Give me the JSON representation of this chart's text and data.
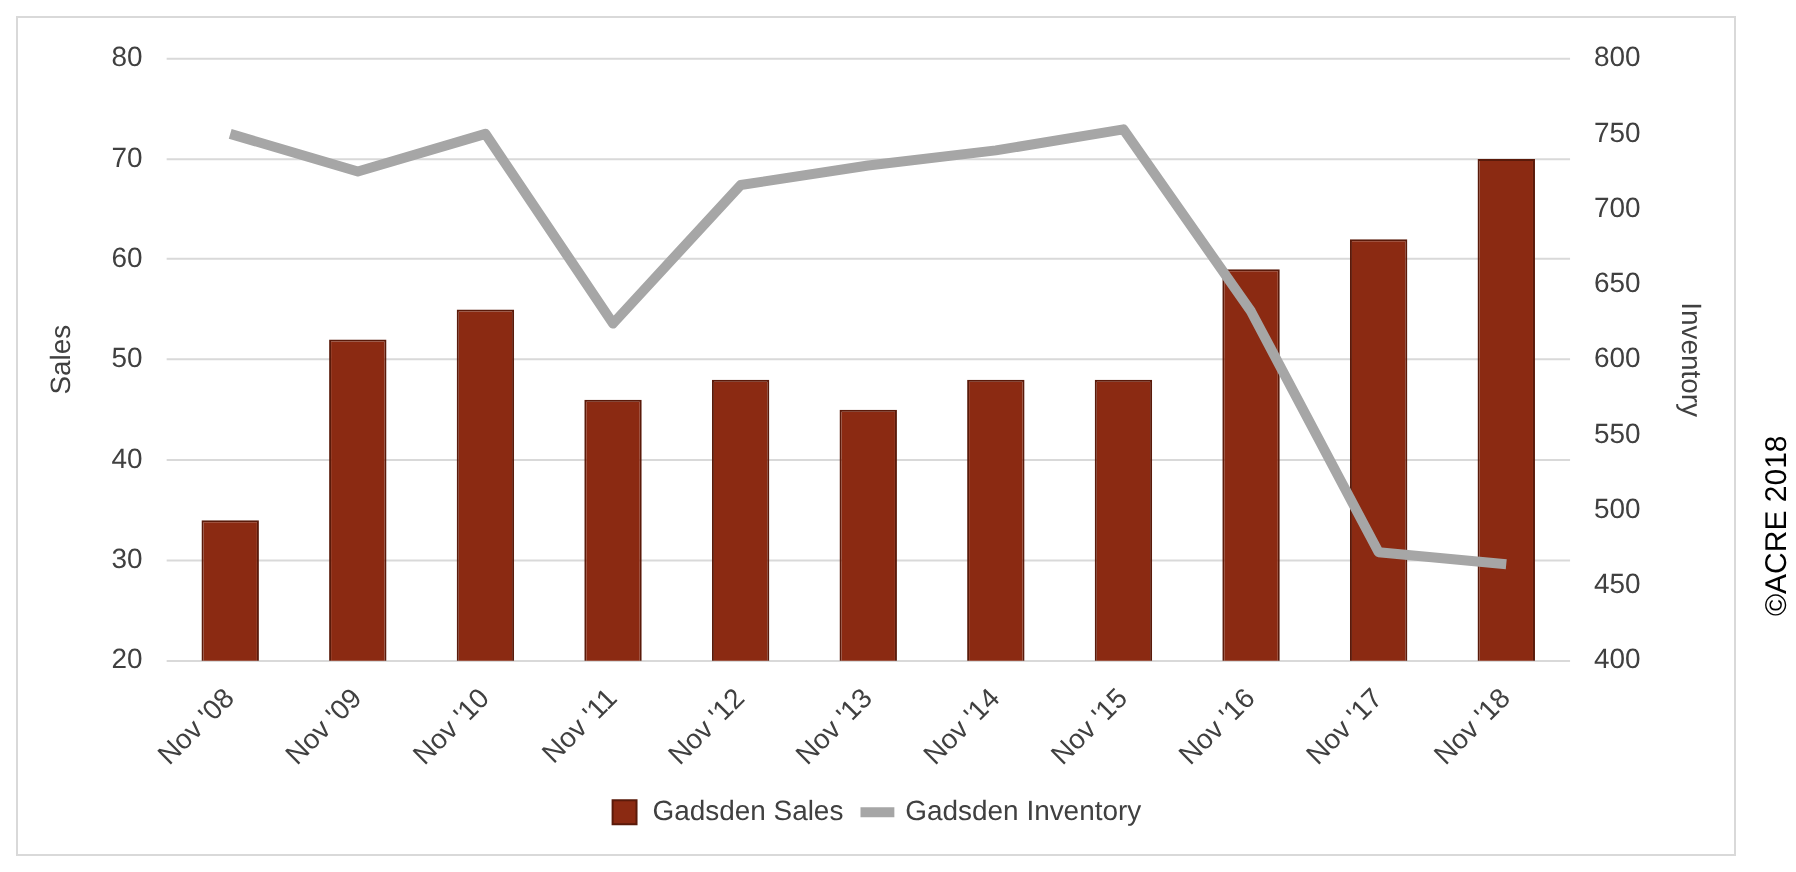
{
  "chart_data": {
    "type": "bar",
    "categories": [
      "Nov '08",
      "Nov '09",
      "Nov '10",
      "Nov '11",
      "Nov '12",
      "Nov '13",
      "Nov '14",
      "Nov '15",
      "Nov '16",
      "Nov '17",
      "Nov '18"
    ],
    "series": [
      {
        "name": "Gadsden Sales",
        "color": "#8b2a12",
        "values": [
          34,
          52,
          55,
          46,
          48,
          45,
          48,
          48,
          59,
          62,
          70
        ]
      },
      {
        "name": "Gadsden Inventory",
        "type": "line",
        "axis": "y2",
        "color": "#a6a6a6",
        "values": [
          750,
          725,
          750,
          624,
          716,
          729,
          739,
          753,
          632,
          472,
          464
        ]
      }
    ],
    "ylabel": "Sales",
    "y2label": "Inventory",
    "ylim": [
      20,
      80
    ],
    "yticks": [
      20,
      30,
      40,
      50,
      60,
      70,
      80
    ],
    "y2lim": [
      400,
      800
    ],
    "y2ticks": [
      400,
      450,
      500,
      550,
      600,
      650,
      700,
      750,
      800
    ],
    "grid": "y",
    "legend": "bottom",
    "marker": "none",
    "annotations": [
      "©ACRE 2018"
    ]
  }
}
